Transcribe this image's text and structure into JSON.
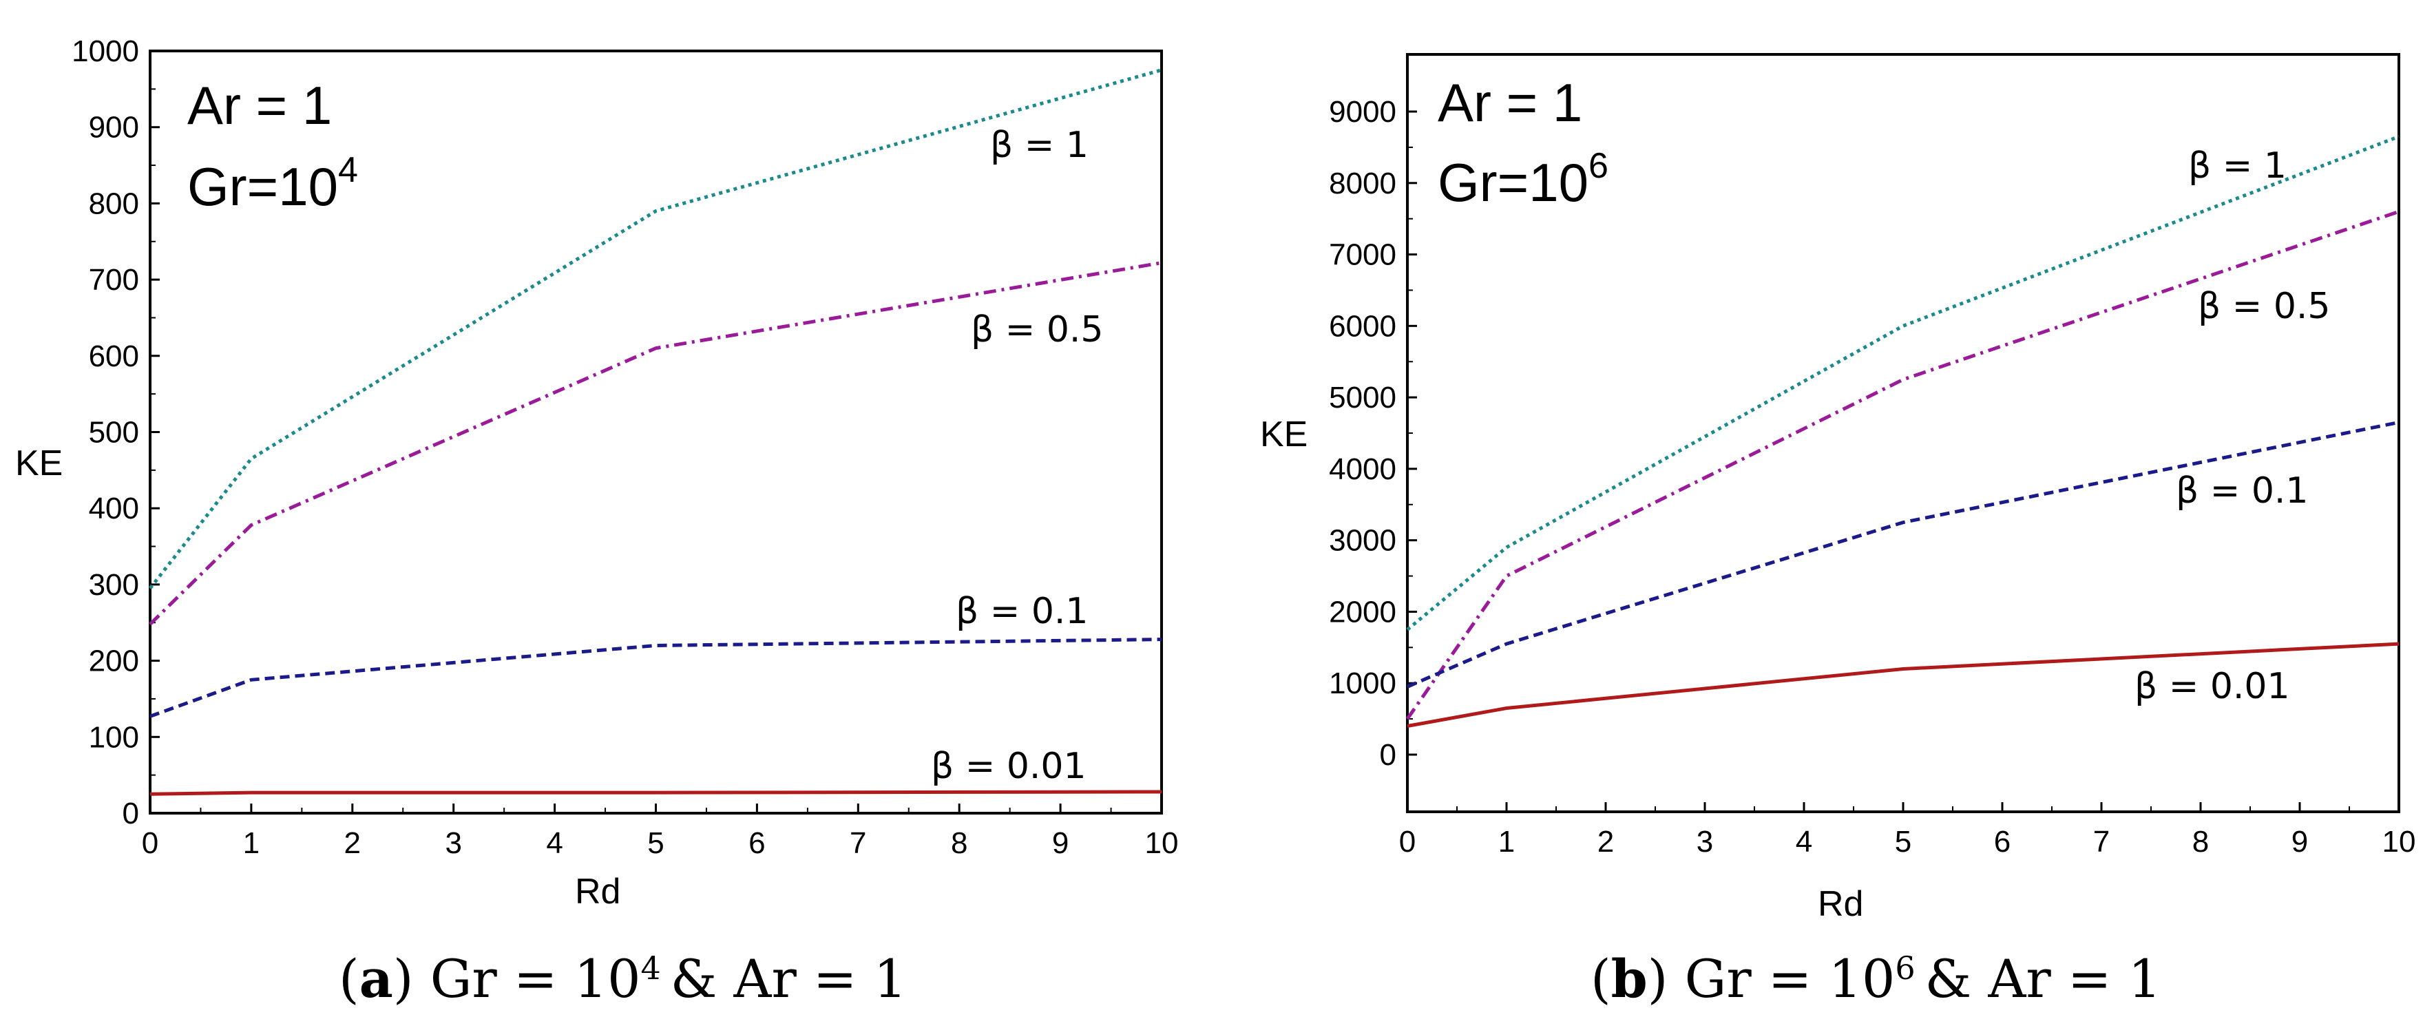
{
  "colors": {
    "beta_1": "#1a8a8a",
    "beta_0_5": "#9a1a9a",
    "beta_0_1": "#1a1a8a",
    "beta_0_01": "#b01a1a"
  },
  "chart_data": [
    {
      "type": "line",
      "xlabel": "Rd",
      "ylabel": "KE",
      "xlim": [
        0,
        10
      ],
      "ylim": [
        0,
        1000
      ],
      "x_ticks": [
        "0",
        "1",
        "2",
        "3",
        "4",
        "5",
        "6",
        "7",
        "8",
        "9",
        "10"
      ],
      "y_ticks": [
        "0",
        "100",
        "200",
        "300",
        "400",
        "500",
        "600",
        "700",
        "800",
        "900",
        "1000"
      ],
      "x": [
        0,
        1,
        5,
        10
      ],
      "annotation_ar": "Ar = 1",
      "annotation_gr_base": "Gr=10",
      "annotation_gr_exp": "4",
      "caption_label": "a",
      "caption_text": "Gr = 10",
      "caption_exp": "4",
      "caption_tail": "& Ar = 1",
      "series": [
        {
          "name": "β = 1",
          "values": [
            295,
            465,
            790,
            975
          ],
          "style": "dotted",
          "color_key": "beta_1"
        },
        {
          "name": "β = 0.5",
          "values": [
            248,
            378,
            610,
            722
          ],
          "style": "dashdot",
          "color_key": "beta_0_5"
        },
        {
          "name": "β = 0.1",
          "values": [
            127,
            175,
            220,
            228
          ],
          "style": "dashed",
          "color_key": "beta_0_1"
        },
        {
          "name": "β = 0.01",
          "values": [
            25,
            27,
            27,
            28
          ],
          "style": "solid",
          "color_key": "beta_0_01"
        }
      ]
    },
    {
      "type": "line",
      "xlabel": "Rd",
      "ylabel": "KE",
      "xlim": [
        0,
        10
      ],
      "ylim": [
        -800,
        9800
      ],
      "x_ticks": [
        "0",
        "1",
        "2",
        "3",
        "4",
        "5",
        "6",
        "7",
        "8",
        "9",
        "10"
      ],
      "y_ticks": [
        "0",
        "1000",
        "2000",
        "3000",
        "4000",
        "5000",
        "6000",
        "7000",
        "8000",
        "9000"
      ],
      "x": [
        0,
        1,
        5,
        10
      ],
      "annotation_ar": "Ar = 1",
      "annotation_gr_base": "Gr=10",
      "annotation_gr_exp": "6",
      "caption_label": "b",
      "caption_text": "Gr = 10",
      "caption_exp": "6",
      "caption_tail": "& Ar = 1",
      "series": [
        {
          "name": "β = 1",
          "values": [
            1750,
            2900,
            6000,
            8650
          ],
          "style": "dotted",
          "color_key": "beta_1"
        },
        {
          "name": "β = 0.5",
          "values": [
            500,
            2500,
            5250,
            7600
          ],
          "style": "dashdot",
          "color_key": "beta_0_5"
        },
        {
          "name": "β = 0.1",
          "values": [
            950,
            1550,
            3250,
            4650
          ],
          "style": "dashed",
          "color_key": "beta_0_1"
        },
        {
          "name": "β = 0.01",
          "values": [
            400,
            650,
            1200,
            1550
          ],
          "style": "solid",
          "color_key": "beta_0_01"
        }
      ]
    }
  ]
}
